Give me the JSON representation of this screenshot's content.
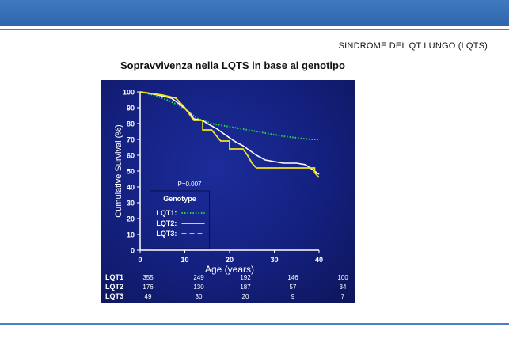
{
  "header": {
    "section_label": "SINDROME DEL QT LUNGO (LQTS)",
    "slide_title": "Sopravvivenza nella LQTS in base al genotipo"
  },
  "colors": {
    "band": "#3a72b8",
    "panel": "#14207e",
    "lqt1": "#2bd64b",
    "lqt2": "#ffffff",
    "lqt3": "#f2e41d"
  },
  "chart_data": {
    "type": "line",
    "title": "",
    "xlabel": "Age (years)",
    "ylabel": "Cumulative Survival (%)",
    "xlim": [
      0,
      40
    ],
    "ylim": [
      0,
      100
    ],
    "x_ticks": [
      "0",
      "10",
      "20",
      "30",
      "40"
    ],
    "y_ticks": [
      "0",
      "10",
      "20",
      "30",
      "40",
      "50",
      "60",
      "70",
      "80",
      "90",
      "100"
    ],
    "annotation": "P=0.007",
    "legend": {
      "title": "Genotype",
      "position": "lower-left"
    },
    "series": [
      {
        "name": "LQT1:",
        "style": "dotted",
        "points": [
          [
            0,
            100
          ],
          [
            3,
            98
          ],
          [
            6,
            95
          ],
          [
            9,
            91
          ],
          [
            11,
            87
          ],
          [
            13,
            83
          ],
          [
            16,
            80
          ],
          [
            20,
            78
          ],
          [
            24,
            76
          ],
          [
            28,
            74
          ],
          [
            32,
            72
          ],
          [
            35,
            71
          ],
          [
            38,
            70
          ],
          [
            40,
            70
          ]
        ]
      },
      {
        "name": "LQT2:",
        "style": "solid",
        "points": [
          [
            0,
            100
          ],
          [
            4,
            98
          ],
          [
            7,
            96
          ],
          [
            9,
            92
          ],
          [
            11,
            87
          ],
          [
            12,
            83
          ],
          [
            14,
            82
          ],
          [
            15,
            80
          ],
          [
            17,
            77
          ],
          [
            19,
            73
          ],
          [
            21,
            69
          ],
          [
            23,
            66
          ],
          [
            24,
            64
          ],
          [
            26,
            60
          ],
          [
            28,
            57
          ],
          [
            30,
            56
          ],
          [
            32,
            55
          ],
          [
            35,
            55
          ],
          [
            37,
            54
          ],
          [
            38,
            52
          ],
          [
            39,
            50
          ],
          [
            40,
            48
          ]
        ]
      },
      {
        "name": "LQT3:",
        "style": "dashed",
        "points": [
          [
            0,
            100
          ],
          [
            5,
            98
          ],
          [
            8,
            96
          ],
          [
            10,
            90
          ],
          [
            11,
            86
          ],
          [
            12,
            82
          ],
          [
            14,
            82
          ],
          [
            14,
            76
          ],
          [
            16,
            76
          ],
          [
            18,
            69
          ],
          [
            20,
            69
          ],
          [
            20,
            64
          ],
          [
            23,
            64
          ],
          [
            24,
            60
          ],
          [
            25,
            55
          ],
          [
            26,
            52
          ],
          [
            32,
            52
          ],
          [
            35,
            52
          ],
          [
            39,
            52
          ],
          [
            39,
            49
          ],
          [
            40,
            46
          ]
        ]
      }
    ],
    "risk_table": {
      "x_positions": [
        0,
        10,
        20,
        30,
        40
      ],
      "rows": [
        {
          "label": "LQT1",
          "values": [
            "355",
            "249",
            "192",
            "146",
            "100"
          ]
        },
        {
          "label": "LQT2",
          "values": [
            "176",
            "130",
            "187",
            "57",
            "34"
          ]
        },
        {
          "label": "LQT3",
          "values": [
            "49",
            "30",
            "20",
            "9",
            "7"
          ]
        }
      ]
    }
  }
}
